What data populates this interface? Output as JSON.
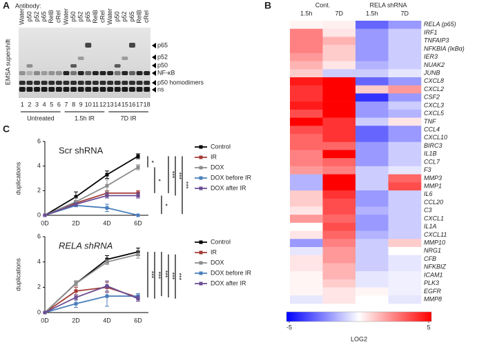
{
  "panel_labels": [
    "A",
    "B",
    "C"
  ],
  "gel": {
    "antibody_label": "Antibody:",
    "ylabel": "EMSA supershift",
    "lanes": [
      {
        "antibody": "Water",
        "number": 1
      },
      {
        "antibody": "p50",
        "number": 2
      },
      {
        "antibody": "p52",
        "number": 3
      },
      {
        "antibody": "p65",
        "number": 4
      },
      {
        "antibody": "RelB",
        "number": 5
      },
      {
        "antibody": "cRel",
        "number": 6
      },
      {
        "antibody": "Water",
        "number": 7
      },
      {
        "antibody": "p50",
        "number": 8
      },
      {
        "antibody": "p52",
        "number": 9
      },
      {
        "antibody": "p65",
        "number": 10
      },
      {
        "antibody": "RelB",
        "number": 11
      },
      {
        "antibody": "cRel",
        "number": 12
      },
      {
        "antibody": "Water",
        "number": 13
      },
      {
        "antibody": "p50",
        "number": 14
      },
      {
        "antibody": "p52",
        "number": 15
      },
      {
        "antibody": "p65",
        "number": 16
      },
      {
        "antibody": "RelB",
        "number": 17
      },
      {
        "antibody": "cRel",
        "number": 18
      }
    ],
    "groups": [
      "Untreated",
      "1.5h IR",
      "7D IR"
    ],
    "bands": [
      "p65",
      "p52",
      "p50",
      "NF-κB",
      "p50 homodimers",
      "ns"
    ]
  },
  "chart_data": [
    {
      "type": "heatmap",
      "groups": [
        "Cont.",
        "RELA shRNA"
      ],
      "columns": [
        "1.5h",
        "7D",
        "1.5h",
        "7D"
      ],
      "rows": [
        "RELA (p65)",
        "IRF1",
        "TNFAIP3",
        "NFKBIA (IκBα)",
        "IER3",
        "NUAK2",
        "JUNB",
        "CXCL8",
        "CXCL2",
        "CSF2",
        "CXCL3",
        "CXCL5",
        "TNF",
        "CCL4",
        "CXCL10",
        "BIRC3",
        "IL1B",
        "CCL7",
        "F3",
        "MMP3",
        "MMP1",
        "IL6",
        "CCL20",
        "C3",
        "CXCL1",
        "IL1A",
        "CXCL11",
        "MMP10",
        "NRG1",
        "CFB",
        "NFKBIZ",
        "ICAM1",
        "PLK3",
        "EGFR",
        "MMP8"
      ],
      "values": [
        [
          0.2,
          0.3,
          -3,
          -2
        ],
        [
          2.5,
          0.5,
          -2,
          -1
        ],
        [
          2.5,
          1.5,
          -2,
          -1
        ],
        [
          2.5,
          1,
          -2,
          -1
        ],
        [
          2,
          1,
          -2,
          -1
        ],
        [
          1.5,
          0.5,
          -1.5,
          -1
        ],
        [
          1,
          -1,
          -1,
          -0.5
        ],
        [
          4.5,
          5,
          -3,
          -2
        ],
        [
          4,
          5,
          1,
          2
        ],
        [
          4,
          5,
          -4,
          -2
        ],
        [
          4.5,
          5,
          -2,
          -1
        ],
        [
          3.5,
          5,
          -2,
          -1.5
        ],
        [
          5,
          4,
          -1,
          0.5
        ],
        [
          3.5,
          4,
          -3,
          -2
        ],
        [
          3,
          4,
          -3,
          -2
        ],
        [
          3,
          3,
          -2,
          -1
        ],
        [
          2.5,
          5,
          -2,
          -1
        ],
        [
          2.5,
          3,
          -2,
          -1
        ],
        [
          2,
          2.5,
          -1,
          -0.5
        ],
        [
          -1.5,
          5,
          -1,
          3
        ],
        [
          -1.5,
          5,
          -1,
          3.5
        ],
        [
          1,
          4,
          -2,
          -1
        ],
        [
          1,
          3.5,
          -2,
          -1
        ],
        [
          0.5,
          3.5,
          -1.5,
          -1
        ],
        [
          2,
          3,
          -2,
          -1
        ],
        [
          0,
          3.5,
          -2,
          -1
        ],
        [
          0.5,
          3,
          -1.5,
          -1
        ],
        [
          -2,
          2.5,
          -1,
          1
        ],
        [
          -0.5,
          2,
          -1,
          0
        ],
        [
          0.5,
          2,
          -1,
          -0.5
        ],
        [
          0.5,
          1.5,
          -1,
          -0.5
        ],
        [
          0.2,
          1.5,
          -0.5,
          -0.3
        ],
        [
          0.2,
          1,
          -0.5,
          -0.3
        ],
        [
          0.2,
          0.5,
          0.2,
          -0.3
        ],
        [
          -0.5,
          0.5,
          0,
          -0.5
        ]
      ],
      "zlim": [
        -5,
        5
      ],
      "zticks": [
        -5,
        5
      ],
      "colorscale": [
        "#0000ff",
        "#ffffff",
        "#ff0000"
      ],
      "colorbar_label": "LOG2"
    },
    {
      "type": "line",
      "title": "Scr shRNA",
      "ylabel": "duplications",
      "categories": [
        "0D",
        "2D",
        "4D",
        "6D"
      ],
      "ylim": [
        0,
        6
      ],
      "yticks": [
        0,
        2,
        4,
        6
      ],
      "series": [
        {
          "name": "Control",
          "color": "#000000",
          "values": [
            0,
            1.5,
            3.3,
            4.8
          ],
          "errors": [
            0,
            0.4,
            0.3,
            0.2
          ]
        },
        {
          "name": "IR",
          "color": "#a33b36",
          "values": [
            0,
            1.0,
            1.8,
            1.8
          ],
          "errors": [
            0,
            0.2,
            0.2,
            0.2
          ]
        },
        {
          "name": "DOX",
          "color": "#8c8c8c",
          "values": [
            0,
            1.1,
            2.4,
            3.9
          ],
          "errors": [
            0,
            0.3,
            0.5,
            0.2
          ]
        },
        {
          "name": "DOX before IR",
          "color": "#4a7ebb",
          "values": [
            0,
            0.8,
            0.6,
            0
          ],
          "errors": [
            0,
            0.1,
            0.3,
            0
          ]
        },
        {
          "name": "DOX after IR",
          "color": "#6a4c93",
          "values": [
            0,
            0.9,
            1.6,
            1.6
          ],
          "errors": [
            0,
            0.1,
            0.2,
            0.2
          ]
        }
      ],
      "significance": [
        {
          "label": "*",
          "range": [
            3.9,
            4.8
          ]
        },
        {
          "label": "*",
          "range": [
            1.8,
            3.9
          ]
        },
        {
          "label": "*",
          "range": [
            0.1,
            1.6
          ]
        },
        {
          "label": "***",
          "range": [
            1.8,
            4.8
          ]
        },
        {
          "label": "***",
          "range": [
            1.6,
            4.8
          ]
        },
        {
          "label": "***",
          "range": [
            0.1,
            4.8
          ]
        }
      ]
    },
    {
      "type": "line",
      "title": "RELA shRNA",
      "ylabel": "duplications",
      "categories": [
        "0D",
        "2D",
        "4D",
        "6D"
      ],
      "ylim": [
        0,
        6
      ],
      "yticks": [
        0,
        2,
        4,
        6
      ],
      "series": [
        {
          "name": "Control",
          "color": "#000000",
          "values": [
            0,
            2.3,
            4.2,
            4.8
          ],
          "errors": [
            0,
            0.2,
            0.3,
            0.3
          ]
        },
        {
          "name": "IR",
          "color": "#a33b36",
          "values": [
            0,
            1.7,
            2.0,
            1.2
          ],
          "errors": [
            0,
            0.3,
            0.4,
            0.3
          ]
        },
        {
          "name": "DOX",
          "color": "#8c8c8c",
          "values": [
            0,
            2.3,
            4.0,
            4.6
          ],
          "errors": [
            0,
            0.2,
            0.2,
            0.3
          ]
        },
        {
          "name": "DOX before IR",
          "color": "#4a7ebb",
          "values": [
            0,
            0.7,
            1.3,
            1.3
          ],
          "errors": [
            0,
            0.3,
            0.8,
            0.2
          ]
        },
        {
          "name": "DOX after IR",
          "color": "#6a4c93",
          "values": [
            0,
            1.2,
            2.1,
            1.1
          ],
          "errors": [
            0,
            0.2,
            0.4,
            0.2
          ]
        }
      ],
      "significance": [
        {
          "label": "***",
          "range": [
            1.2,
            4.8
          ]
        },
        {
          "label": "***",
          "range": [
            1.1,
            4.8
          ]
        },
        {
          "label": "***",
          "range": [
            1.3,
            4.8
          ]
        },
        {
          "label": "***",
          "range": [
            1.2,
            4.6
          ]
        },
        {
          "label": "***",
          "range": [
            1.1,
            4.6
          ]
        }
      ]
    }
  ]
}
